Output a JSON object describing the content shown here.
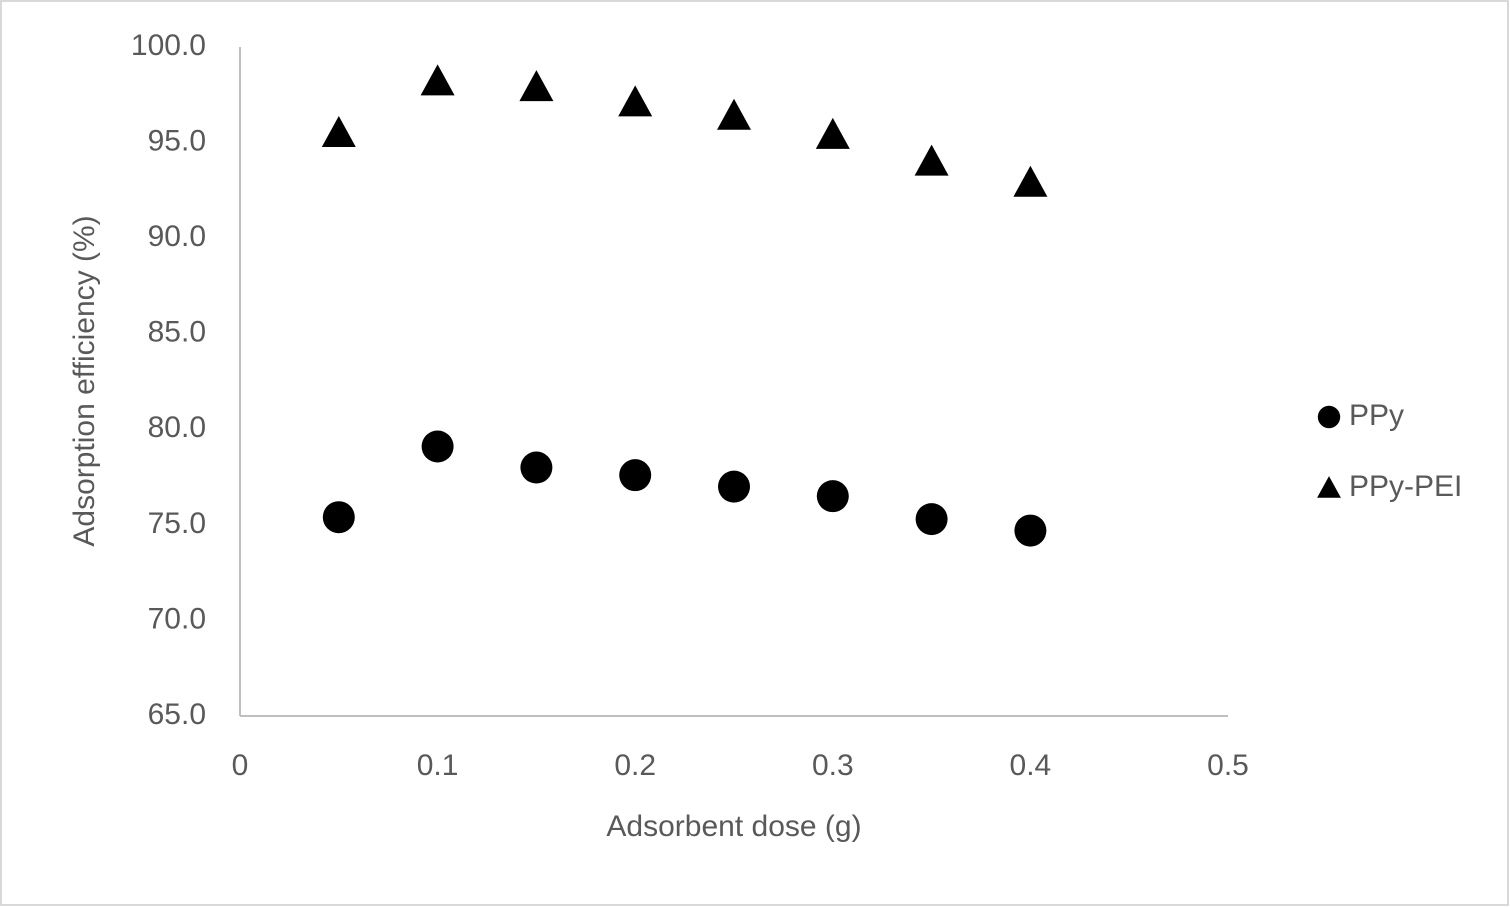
{
  "chart_data": {
    "type": "scatter",
    "x_label": "Adsorbent dose (g)",
    "y_label": "Adsorption efficiency (%)",
    "x": [
      0.05,
      0.1,
      0.15,
      0.2,
      0.25,
      0.3,
      0.35,
      0.4
    ],
    "series": [
      {
        "name": "PPy",
        "color": "#000000",
        "marker": "circle",
        "values": [
          75.4,
          79.1,
          78.0,
          77.6,
          77.0,
          76.5,
          75.3,
          74.7
        ]
      },
      {
        "name": "PPy-PEI",
        "color": "#000000",
        "marker": "triangle",
        "values": [
          95.5,
          98.2,
          97.9,
          97.1,
          96.4,
          95.4,
          94.0,
          92.9
        ]
      }
    ],
    "xlim": [
      0,
      0.5
    ],
    "xticks": [
      0,
      0.1,
      0.2,
      0.3,
      0.4,
      0.5
    ],
    "ylim": [
      65,
      100
    ],
    "yticks": [
      {
        "value": 65,
        "label": "65.0"
      },
      {
        "value": 70,
        "label": "70.0"
      },
      {
        "value": 75,
        "label": "75.0"
      },
      {
        "value": 80,
        "label": "80.0"
      },
      {
        "value": 85,
        "label": "85.0"
      },
      {
        "value": 90,
        "label": "90.0"
      },
      {
        "value": 95,
        "label": "95.0"
      },
      {
        "value": 100,
        "label": "100.0"
      }
    ],
    "grid": false,
    "legend": "right"
  }
}
